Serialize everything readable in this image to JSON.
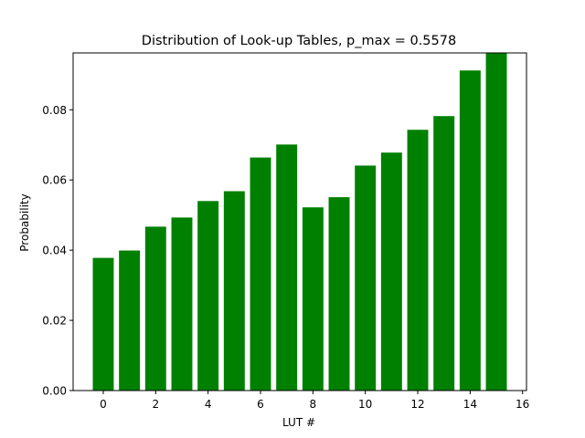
{
  "chart_data": {
    "type": "bar",
    "title": "Distribution of Look-up Tables, p_max = 0.5578",
    "xlabel": "LUT #",
    "ylabel": "Probability",
    "x": [
      0,
      1,
      2,
      3,
      4,
      5,
      6,
      7,
      8,
      9,
      10,
      11,
      12,
      13,
      14,
      15
    ],
    "values": [
      0.0378,
      0.0399,
      0.0467,
      0.0493,
      0.054,
      0.0568,
      0.0664,
      0.0701,
      0.0522,
      0.0551,
      0.0641,
      0.0678,
      0.0743,
      0.0782,
      0.0912,
      0.0962
    ],
    "xlim": [
      -1.15,
      16.15
    ],
    "ylim": [
      0,
      0.0962
    ],
    "xticks": [
      0,
      2,
      4,
      6,
      8,
      10,
      12,
      14,
      16
    ],
    "yticks": [
      0.0,
      0.02,
      0.04,
      0.06,
      0.08
    ],
    "xtick_labels": [
      "0",
      "2",
      "4",
      "6",
      "8",
      "10",
      "12",
      "14",
      "16"
    ],
    "ytick_labels": [
      "0.00",
      "0.02",
      "0.04",
      "0.06",
      "0.08"
    ],
    "bar_width": 0.8,
    "bar_color": "#008000",
    "grid": false,
    "legend": "none"
  }
}
